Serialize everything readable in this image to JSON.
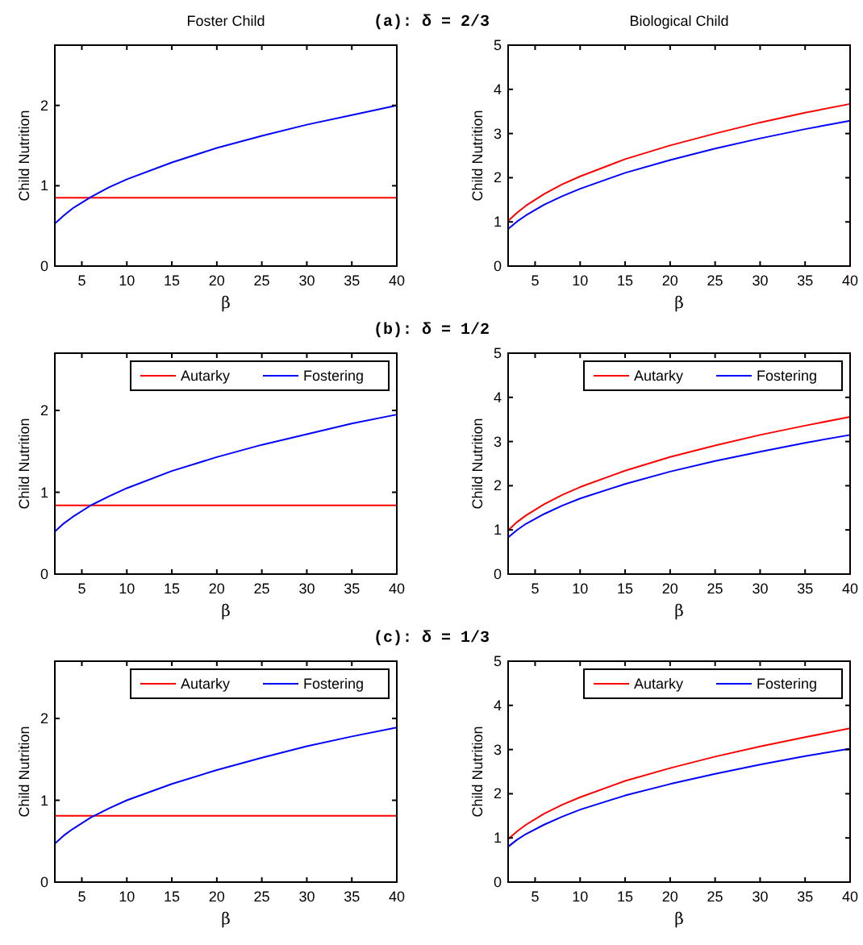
{
  "chart_data": [
    {
      "type": "line",
      "title": "Foster Child",
      "annotations": [
        "(a): δ = 2/3"
      ],
      "xlabel": "β",
      "ylabel": "Child Nutrition",
      "xlim": [
        2,
        40
      ],
      "xticks": [
        5,
        10,
        15,
        20,
        25,
        30,
        35,
        40
      ],
      "ylim": [
        0,
        2.75
      ],
      "yticks": [
        0,
        1,
        2
      ],
      "legend": false,
      "series": [
        {
          "color": "#ff0000",
          "x": [
            2,
            40
          ],
          "values": [
            0.85,
            0.85
          ]
        },
        {
          "color": "#0000ff",
          "x": [
            2,
            3,
            4,
            6,
            8,
            10,
            15,
            20,
            25,
            30,
            35,
            40
          ],
          "values": [
            0.53,
            0.63,
            0.72,
            0.86,
            0.98,
            1.08,
            1.29,
            1.47,
            1.62,
            1.76,
            1.88,
            2.0
          ]
        }
      ]
    },
    {
      "type": "line",
      "title": "Biological Child",
      "xlabel": "β",
      "ylabel": "Child Nutrition",
      "xlim": [
        2,
        40
      ],
      "xticks": [
        5,
        10,
        15,
        20,
        25,
        30,
        35,
        40
      ],
      "ylim": [
        0,
        5
      ],
      "yticks": [
        0,
        1,
        2,
        3,
        4,
        5
      ],
      "legend": false,
      "series": [
        {
          "color": "#ff0000",
          "x": [
            2,
            3,
            4,
            6,
            8,
            10,
            15,
            20,
            25,
            30,
            35,
            40
          ],
          "values": [
            1.02,
            1.21,
            1.37,
            1.63,
            1.85,
            2.03,
            2.42,
            2.73,
            3.0,
            3.25,
            3.47,
            3.67
          ]
        },
        {
          "color": "#0000ff",
          "x": [
            2,
            3,
            4,
            6,
            8,
            10,
            15,
            20,
            25,
            30,
            35,
            40
          ],
          "values": [
            0.84,
            1.01,
            1.15,
            1.39,
            1.58,
            1.75,
            2.11,
            2.4,
            2.66,
            2.89,
            3.1,
            3.29
          ]
        }
      ]
    },
    {
      "type": "line",
      "annotations": [
        "(b): δ = 1/2"
      ],
      "xlabel": "β",
      "ylabel": "Child Nutrition",
      "xlim": [
        2,
        40
      ],
      "xticks": [
        5,
        10,
        15,
        20,
        25,
        30,
        35,
        40
      ],
      "ylim": [
        0,
        2.7
      ],
      "yticks": [
        0,
        1,
        2
      ],
      "legend": "top right",
      "series": [
        {
          "name": "Autarky",
          "color": "#ff0000",
          "x": [
            2,
            40
          ],
          "values": [
            0.84,
            0.84
          ]
        },
        {
          "name": "Fostering",
          "color": "#0000ff",
          "x": [
            2,
            3,
            4,
            6,
            8,
            10,
            15,
            20,
            25,
            30,
            35,
            40
          ],
          "values": [
            0.52,
            0.62,
            0.7,
            0.84,
            0.95,
            1.05,
            1.26,
            1.43,
            1.58,
            1.71,
            1.84,
            1.95
          ]
        }
      ]
    },
    {
      "type": "line",
      "xlabel": "β",
      "ylabel": "Child Nutrition",
      "xlim": [
        2,
        40
      ],
      "xticks": [
        5,
        10,
        15,
        20,
        25,
        30,
        35,
        40
      ],
      "ylim": [
        0,
        5
      ],
      "yticks": [
        0,
        1,
        2,
        3,
        4,
        5
      ],
      "legend": "top right",
      "series": [
        {
          "name": "Autarky",
          "color": "#ff0000",
          "x": [
            2,
            3,
            4,
            6,
            8,
            10,
            15,
            20,
            25,
            30,
            35,
            40
          ],
          "values": [
            0.99,
            1.18,
            1.33,
            1.58,
            1.79,
            1.97,
            2.34,
            2.65,
            2.91,
            3.15,
            3.36,
            3.56
          ]
        },
        {
          "name": "Fostering",
          "color": "#0000ff",
          "x": [
            2,
            3,
            4,
            6,
            8,
            10,
            15,
            20,
            25,
            30,
            35,
            40
          ],
          "values": [
            0.83,
            1.0,
            1.14,
            1.36,
            1.55,
            1.71,
            2.04,
            2.32,
            2.56,
            2.77,
            2.97,
            3.15
          ]
        }
      ]
    },
    {
      "type": "line",
      "annotations": [
        "(c): δ = 1/3"
      ],
      "xlabel": "β",
      "ylabel": "Child Nutrition",
      "xlim": [
        2,
        40
      ],
      "xticks": [
        5,
        10,
        15,
        20,
        25,
        30,
        35,
        40
      ],
      "ylim": [
        0,
        2.7
      ],
      "yticks": [
        0,
        1,
        2
      ],
      "legend": "top right",
      "series": [
        {
          "name": "Autarky",
          "color": "#ff0000",
          "x": [
            2,
            40
          ],
          "values": [
            0.81,
            0.81
          ]
        },
        {
          "name": "Fostering",
          "color": "#0000ff",
          "x": [
            2,
            3,
            4,
            6,
            8,
            10,
            15,
            20,
            25,
            30,
            35,
            40
          ],
          "values": [
            0.47,
            0.57,
            0.65,
            0.79,
            0.9,
            1.0,
            1.2,
            1.37,
            1.52,
            1.66,
            1.78,
            1.89
          ]
        }
      ]
    },
    {
      "type": "line",
      "xlabel": "β",
      "ylabel": "Child Nutrition",
      "xlim": [
        2,
        40
      ],
      "xticks": [
        5,
        10,
        15,
        20,
        25,
        30,
        35,
        40
      ],
      "ylim": [
        0,
        5
      ],
      "yticks": [
        0,
        1,
        2,
        3,
        4,
        5
      ],
      "legend": "top right",
      "series": [
        {
          "name": "Autarky",
          "color": "#ff0000",
          "x": [
            2,
            3,
            4,
            6,
            8,
            10,
            15,
            20,
            25,
            30,
            35,
            40
          ],
          "values": [
            0.97,
            1.15,
            1.3,
            1.55,
            1.75,
            1.92,
            2.29,
            2.58,
            2.84,
            3.07,
            3.28,
            3.48
          ]
        },
        {
          "name": "Fostering",
          "color": "#0000ff",
          "x": [
            2,
            3,
            4,
            6,
            8,
            10,
            15,
            20,
            25,
            30,
            35,
            40
          ],
          "values": [
            0.8,
            0.96,
            1.09,
            1.3,
            1.48,
            1.64,
            1.96,
            2.22,
            2.45,
            2.66,
            2.85,
            3.02
          ]
        }
      ]
    }
  ]
}
